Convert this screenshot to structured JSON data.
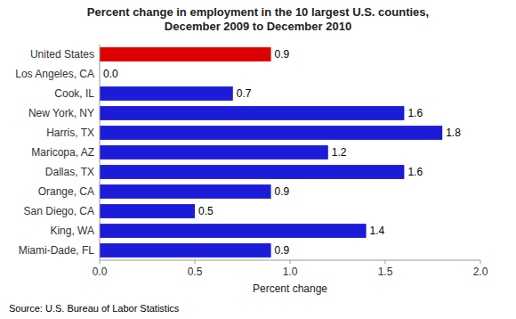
{
  "chart_data": {
    "type": "bar",
    "orientation": "horizontal",
    "title": "Percent change in employment in the 10 largest U.S. counties,\nDecember 2009 to December 2010",
    "categories": [
      "United States",
      "Los Angeles, CA",
      "Cook, IL",
      "New York, NY",
      "Harris, TX",
      "Maricopa, AZ",
      "Dallas, TX",
      "Orange, CA",
      "San Diego, CA",
      "King, WA",
      "Miami-Dade, FL"
    ],
    "values": [
      0.9,
      0.0,
      0.7,
      1.6,
      1.8,
      1.2,
      1.6,
      0.9,
      0.5,
      1.4,
      0.9
    ],
    "value_labels": [
      "0.9",
      "0.0",
      "0.7",
      "1.6",
      "1.8",
      "1.2",
      "1.6",
      "0.9",
      "0.5",
      "1.4",
      "0.9"
    ],
    "colors": [
      "#dd0000",
      "#1c1cd8",
      "#1c1cd8",
      "#1c1cd8",
      "#1c1cd8",
      "#1c1cd8",
      "#1c1cd8",
      "#1c1cd8",
      "#1c1cd8",
      "#1c1cd8",
      "#1c1cd8"
    ],
    "data_labels": true,
    "xlabel": "Percent change",
    "xlim": [
      0,
      2.0
    ],
    "xticks": [
      {
        "value": 0,
        "label": "0.0"
      },
      0.5,
      {
        "value": 1,
        "label": "1.0"
      },
      1.5,
      {
        "value": 2,
        "label": "2.0"
      }
    ],
    "grid": false,
    "annotations": [
      "Source: U.S. Bureau of Labor Statistics"
    ]
  }
}
